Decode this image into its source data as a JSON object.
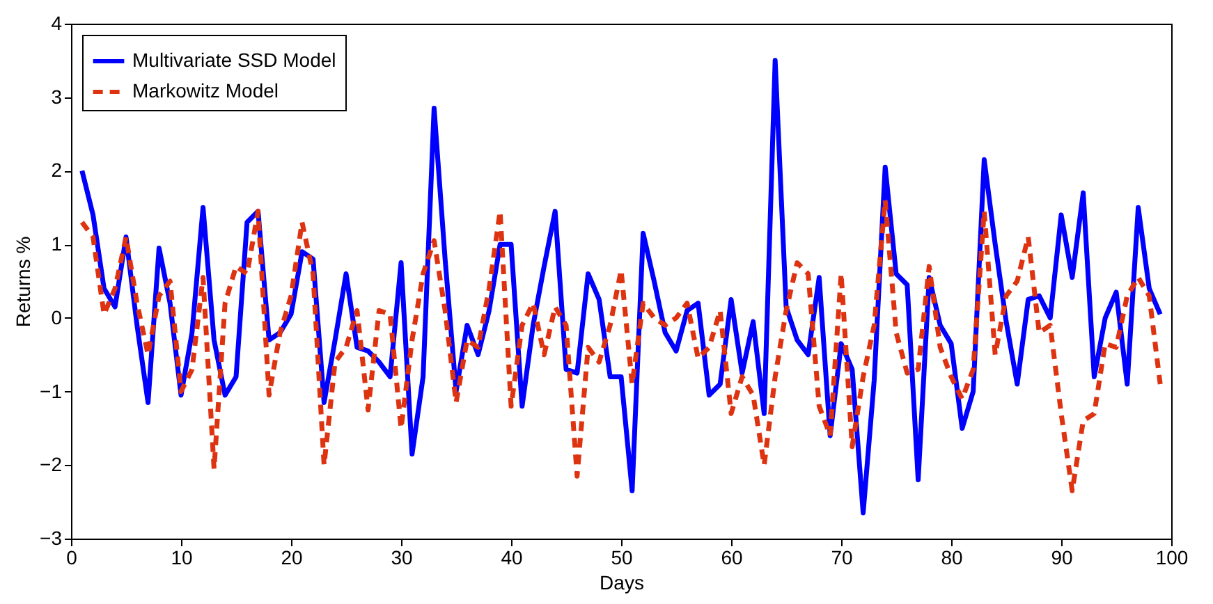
{
  "chart_data": {
    "type": "line",
    "xlabel": "Days",
    "ylabel": "Returns %",
    "xlim": [
      0,
      100
    ],
    "xticks": [
      0,
      10,
      20,
      30,
      40,
      50,
      60,
      70,
      80,
      90,
      100
    ],
    "ylim": [
      -3,
      4
    ],
    "yticks": [
      -3,
      -2,
      -1,
      0,
      1,
      2,
      3,
      4
    ],
    "grid": false,
    "legend": "top left",
    "x": [
      1,
      2,
      3,
      4,
      5,
      6,
      7,
      8,
      9,
      10,
      11,
      12,
      13,
      14,
      15,
      16,
      17,
      18,
      19,
      20,
      21,
      22,
      23,
      24,
      25,
      26,
      27,
      28,
      29,
      30,
      31,
      32,
      33,
      34,
      35,
      36,
      37,
      38,
      39,
      40,
      41,
      42,
      43,
      44,
      45,
      46,
      47,
      48,
      49,
      50,
      51,
      52,
      53,
      54,
      55,
      56,
      57,
      58,
      59,
      60,
      61,
      62,
      63,
      64,
      65,
      66,
      67,
      68,
      69,
      70,
      71,
      72,
      73,
      74,
      75,
      76,
      77,
      78,
      79,
      80,
      81,
      82,
      83,
      84,
      85,
      86,
      87,
      88,
      89,
      90,
      91,
      92,
      93,
      94,
      95,
      96,
      97,
      98,
      99
    ],
    "series": [
      {
        "name": "Multivariate SSD Model",
        "color": "#0000ff",
        "line_style": "solid",
        "values": [
          2.0,
          1.4,
          0.4,
          0.15,
          1.1,
          -0.1,
          -1.15,
          0.95,
          0.2,
          -1.05,
          -0.2,
          1.5,
          -0.3,
          -1.05,
          -0.8,
          1.3,
          1.45,
          -0.3,
          -0.2,
          0.05,
          0.9,
          0.8,
          -1.15,
          -0.3,
          0.6,
          -0.4,
          -0.45,
          -0.6,
          -0.8,
          0.75,
          -1.85,
          -0.8,
          2.85,
          0.8,
          -1.0,
          -0.1,
          -0.5,
          0.1,
          1.0,
          1.0,
          -1.2,
          -0.1,
          0.7,
          1.45,
          -0.7,
          -0.75,
          0.6,
          0.25,
          -0.8,
          -0.8,
          -2.35,
          1.15,
          0.5,
          -0.2,
          -0.45,
          0.1,
          0.2,
          -1.05,
          -0.9,
          0.25,
          -0.75,
          -0.05,
          -1.3,
          3.5,
          0.15,
          -0.3,
          -0.5,
          0.55,
          -1.6,
          -0.35,
          -0.7,
          -2.65,
          -0.85,
          2.05,
          0.6,
          0.45,
          -2.2,
          0.55,
          -0.1,
          -0.35,
          -1.5,
          -1.0,
          2.15,
          1.0,
          -0.05,
          -0.9,
          0.25,
          0.3,
          0.0,
          1.4,
          0.55,
          1.7,
          -0.8,
          0.0,
          0.35,
          -0.9,
          1.5,
          0.4,
          0.05
        ]
      },
      {
        "name": "Markowitz Model",
        "color": "#dd3311",
        "line_style": "dashed",
        "values": [
          1.3,
          1.1,
          0.05,
          0.4,
          1.1,
          0.2,
          -0.5,
          0.3,
          0.5,
          -1.0,
          -0.7,
          0.55,
          -2.05,
          0.2,
          0.7,
          0.6,
          1.45,
          -1.05,
          -0.2,
          0.3,
          1.3,
          0.6,
          -2.0,
          -0.6,
          -0.4,
          0.1,
          -1.25,
          0.1,
          0.05,
          -1.5,
          -0.3,
          0.6,
          1.05,
          0.1,
          -1.15,
          -0.3,
          -0.4,
          0.4,
          1.45,
          -1.2,
          -0.1,
          0.2,
          -0.5,
          0.15,
          -0.1,
          -2.15,
          -0.4,
          -0.6,
          -0.1,
          0.65,
          -0.9,
          0.2,
          0.0,
          -0.1,
          0.0,
          0.2,
          -0.55,
          -0.4,
          0.1,
          -1.3,
          -0.8,
          -1.05,
          -2.0,
          -0.8,
          0.1,
          0.75,
          0.6,
          -1.2,
          -1.6,
          0.6,
          -1.75,
          -0.8,
          -0.1,
          1.6,
          -0.2,
          -0.75,
          -0.7,
          0.7,
          -0.4,
          -0.8,
          -1.1,
          -0.7,
          1.45,
          -0.5,
          0.3,
          0.5,
          1.1,
          -0.2,
          -0.1,
          -1.3,
          -2.35,
          -1.4,
          -1.3,
          -0.35,
          -0.4,
          0.3,
          0.55,
          0.3,
          -0.9
        ]
      }
    ]
  }
}
